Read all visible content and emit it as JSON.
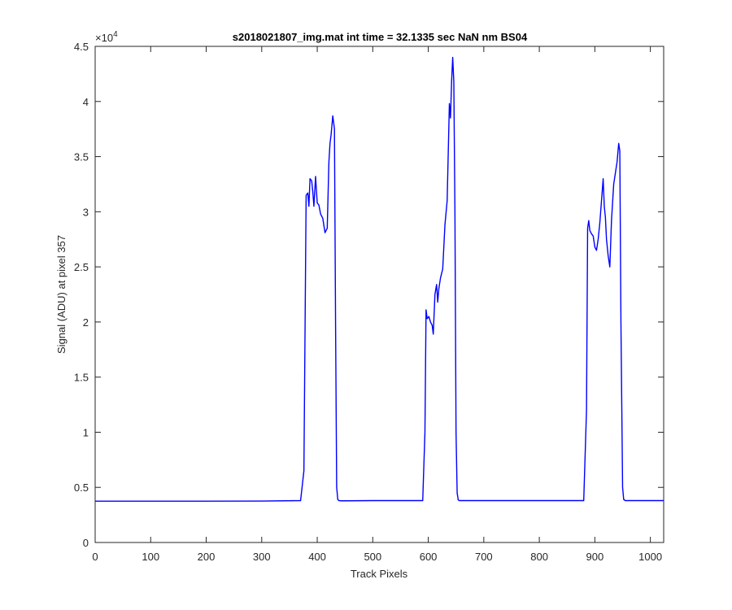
{
  "chart_data": {
    "type": "line",
    "title": "s2018021807_img.mat int time = 32.1335 sec  NaN nm BS04",
    "xlabel": "Track Pixels",
    "ylabel": "Signal (ADU) at pixel 357",
    "exponent_label": "×10",
    "exponent_power": "4",
    "xlim": [
      0,
      1024
    ],
    "ylim": [
      0,
      45000
    ],
    "xticks": [
      0,
      100,
      200,
      300,
      400,
      500,
      600,
      700,
      800,
      900,
      1000
    ],
    "xtick_labels": [
      "0",
      "100",
      "200",
      "300",
      "400",
      "500",
      "600",
      "700",
      "800",
      "900",
      "1000"
    ],
    "yticks": [
      0,
      5000,
      10000,
      15000,
      20000,
      25000,
      30000,
      35000,
      40000,
      45000
    ],
    "ytick_labels": [
      "0",
      "0.5",
      "1",
      "1.5",
      "2",
      "2.5",
      "3",
      "3.5",
      "4",
      "4.5"
    ],
    "grid": false,
    "line_color": "#0000ff",
    "series": [
      {
        "x": [
          0,
          100,
          200,
          300,
          370,
          376,
          380,
          383,
          385,
          387,
          390,
          392,
          394,
          397,
          400,
          403,
          406,
          410,
          414,
          418,
          421,
          423,
          425,
          428,
          431,
          433,
          435,
          437,
          439,
          441,
          443,
          450,
          500,
          550,
          590,
          594,
          596,
          598,
          601,
          604,
          607,
          609,
          612,
          615,
          617,
          619,
          622,
          626,
          630,
          634,
          638,
          640,
          642,
          644,
          646,
          648,
          650,
          652,
          654,
          656,
          660,
          700,
          750,
          800,
          880,
          885,
          887,
          889,
          891,
          894,
          897,
          900,
          903,
          906,
          909,
          912,
          915,
          917,
          919,
          921,
          924,
          927,
          930,
          934,
          937,
          940,
          943,
          945,
          947,
          950,
          952,
          955,
          960,
          1000,
          1024
        ],
        "y": [
          3750,
          3750,
          3750,
          3760,
          3800,
          6500,
          31500,
          31700,
          30500,
          33000,
          32800,
          31800,
          30500,
          33200,
          30800,
          30600,
          29800,
          29400,
          28100,
          28500,
          34500,
          36200,
          37000,
          38700,
          37500,
          20000,
          5000,
          3900,
          3800,
          3790,
          3780,
          3780,
          3800,
          3800,
          3800,
          10000,
          21100,
          20300,
          20500,
          20000,
          19700,
          18900,
          22500,
          23400,
          21800,
          23000,
          24000,
          24800,
          28800,
          31000,
          39800,
          38500,
          41800,
          44000,
          41800,
          30000,
          10000,
          4500,
          3850,
          3800,
          3800,
          3800,
          3800,
          3800,
          3800,
          12000,
          28500,
          29200,
          28300,
          28000,
          27800,
          26800,
          26500,
          27500,
          29000,
          31000,
          33000,
          30500,
          29500,
          27500,
          26000,
          25000,
          29200,
          32500,
          33500,
          34500,
          36200,
          35500,
          20000,
          5000,
          3900,
          3800,
          3800,
          3800,
          3800
        ]
      }
    ]
  }
}
